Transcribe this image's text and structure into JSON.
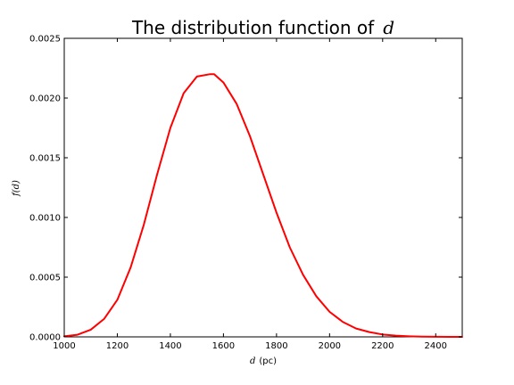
{
  "chart_data": {
    "type": "line",
    "title_text": "The distribution function of",
    "title_var": "d",
    "xlabel_var": "d",
    "xlabel_unit": "(pc)",
    "ylabel": "f(d)",
    "xlim": [
      1000,
      2500
    ],
    "ylim": [
      0,
      0.0025
    ],
    "x_ticks": [
      1000,
      1200,
      1400,
      1600,
      1800,
      2000,
      2200,
      2400
    ],
    "x_tick_labels": [
      "1000",
      "1200",
      "1400",
      "1600",
      "1800",
      "2000",
      "2200",
      "2400"
    ],
    "y_ticks": [
      0,
      0.0005,
      0.001,
      0.0015,
      0.002,
      0.0025
    ],
    "y_tick_labels": [
      "0.0000",
      "0.0005",
      "0.0010",
      "0.0015",
      "0.0020",
      "0.0025"
    ],
    "grid": false,
    "series": [
      {
        "color": "#ff0000",
        "x": [
          1000,
          1050,
          1100,
          1150,
          1200,
          1250,
          1300,
          1350,
          1400,
          1450,
          1500,
          1550,
          1565,
          1600,
          1650,
          1700,
          1750,
          1800,
          1850,
          1900,
          1950,
          2000,
          2050,
          2100,
          2150,
          2200,
          2250,
          2300,
          2350,
          2400,
          2450,
          2500
        ],
        "y": [
          5e-06,
          1.8e-05,
          6e-05,
          0.00015,
          0.00031,
          0.00058,
          0.00094,
          0.00136,
          0.00175,
          0.00204,
          0.00218,
          0.0022,
          0.0022,
          0.00213,
          0.00195,
          0.00168,
          0.00136,
          0.00104,
          0.00075,
          0.00052,
          0.00034,
          0.00021,
          0.000125,
          7e-05,
          4e-05,
          2e-05,
          1e-05,
          5e-06,
          2e-06,
          1e-06,
          4e-07,
          2e-07
        ]
      }
    ]
  }
}
